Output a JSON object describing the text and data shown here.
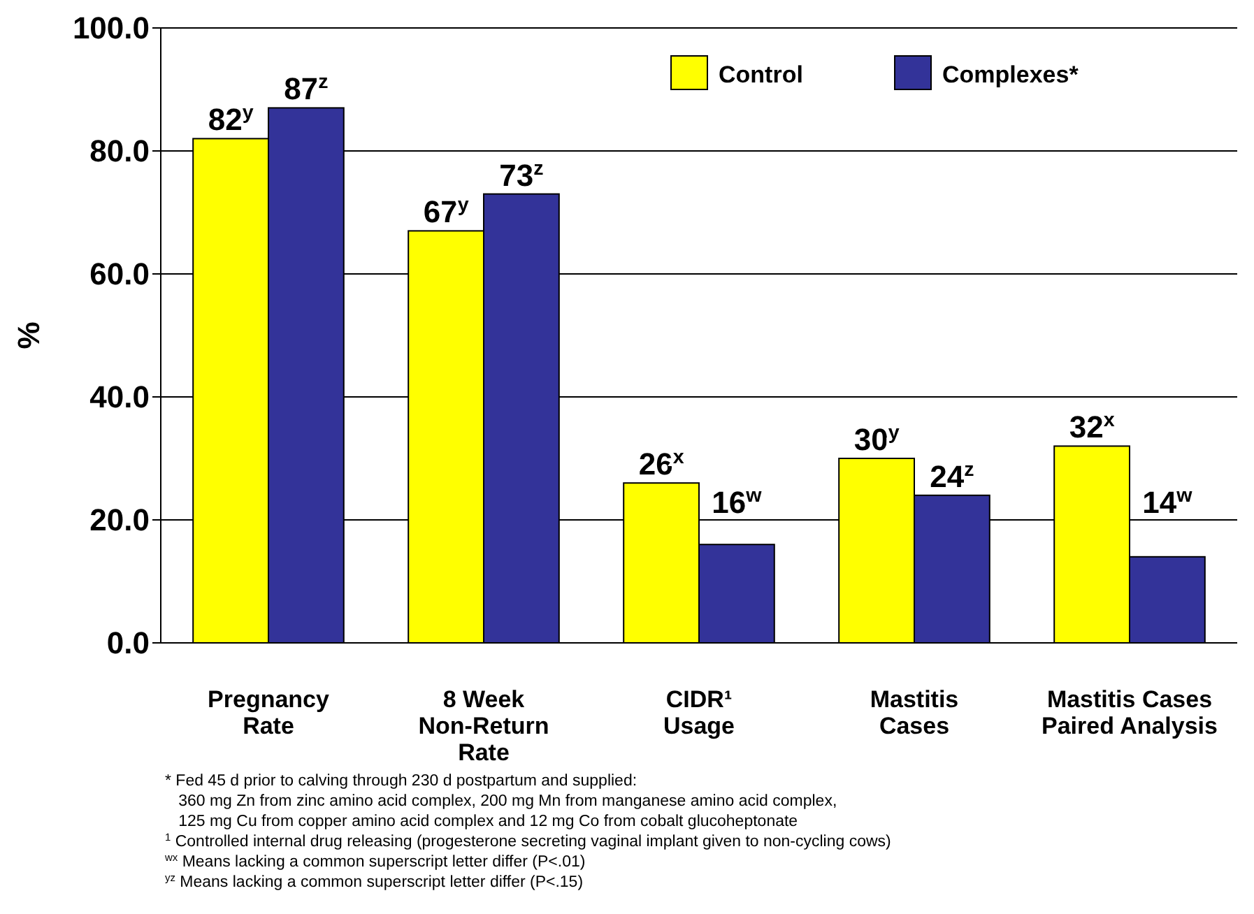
{
  "chart_data": {
    "type": "bar",
    "ylabel": "%",
    "categories": [
      "Pregnancy\nRate",
      "8 Week\nNon-Return\nRate",
      "CIDR¹\nUsage",
      "Mastitis\nCases",
      "Mastitis Cases\nPaired Analysis"
    ],
    "series": [
      {
        "name": "Control",
        "color": "#ffff00",
        "values": [
          82,
          67,
          26,
          30,
          32
        ],
        "value_labels": [
          "82$^{y}$",
          "67$^{y}$",
          "26$^{x}$",
          "30$^{y}$",
          "32$^{x}$"
        ]
      },
      {
        "name": "Complexes*",
        "color": "#333399",
        "values": [
          87,
          73,
          16,
          24,
          14
        ],
        "value_labels": [
          "87$^{z}$",
          "73$^{z}$",
          "16$^{w}$",
          "24$^{z}$",
          "14$^{w}$"
        ]
      }
    ],
    "ylim": [
      0,
      100
    ],
    "yticks": [
      {
        "value": 0,
        "label": "0.0"
      },
      {
        "value": 20,
        "label": "20.0"
      },
      {
        "value": 40,
        "label": "40.0"
      },
      {
        "value": 60,
        "label": "60.0"
      },
      {
        "value": 80,
        "label": "80.0"
      },
      {
        "value": 100,
        "label": "100.0"
      }
    ],
    "grid": "y",
    "legend": "top right",
    "annotations": [
      "* Fed 45 d prior to calving through 230 d postpartum and supplied:",
      "   360 mg Zn from zinc amino acid complex, 200 mg Mn from manganese amino acid complex,",
      "   125 mg Cu from copper amino acid complex and 12 mg Co from cobalt glucoheptonate",
      "$^{1}$ Controlled internal drug releasing (progesterone secreting vaginal implant given to non-cycling cows)",
      "$^{wx}$ Means lacking a common superscript letter differ (P<.01)",
      "$^{yz}$ Means lacking a common superscript letter differ (P<.15)"
    ]
  }
}
